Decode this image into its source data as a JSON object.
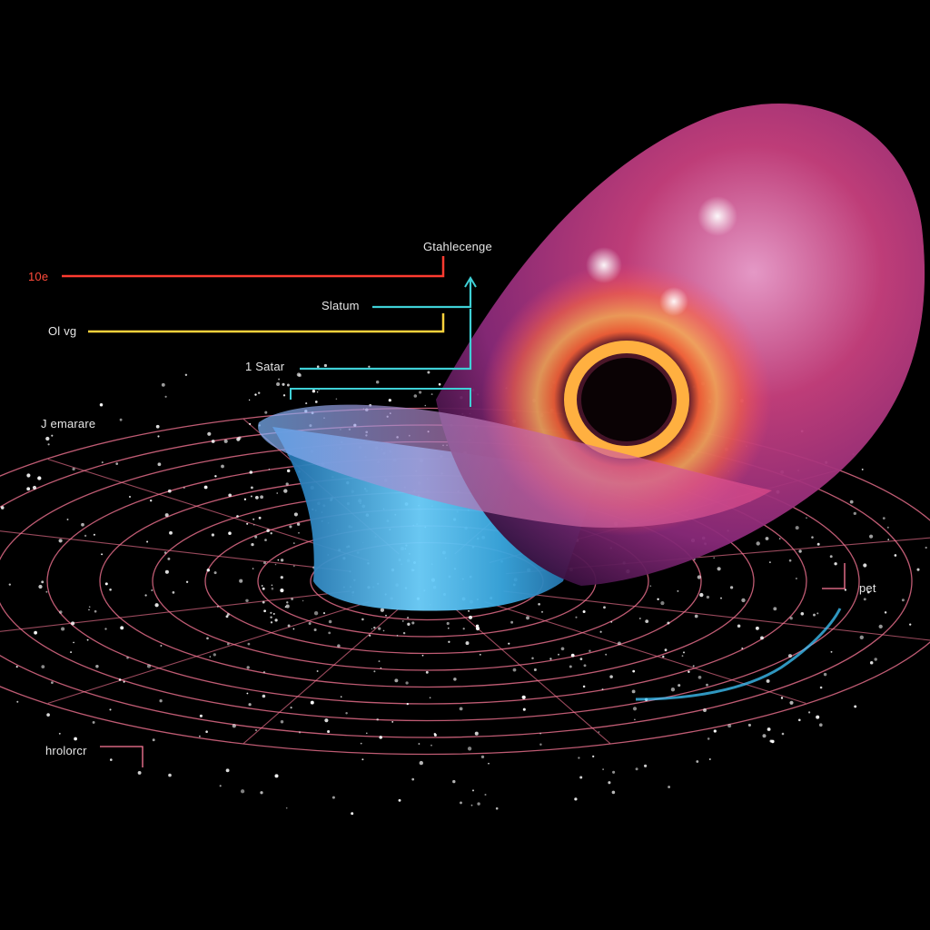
{
  "labels": {
    "red_left": "10e",
    "yellow_left": "Ol vg",
    "teal_left": "1 Satar",
    "top_center": "Gtahlecenge",
    "middle_center": "Slatum",
    "left_middle": "J emarare",
    "right_edge": "pet",
    "bottom_left": "hrolorcr"
  },
  "colors": {
    "background": "#000000",
    "red_line": "#ff3b30",
    "yellow_line": "#ffd23c",
    "teal_line": "#3fd0d6",
    "grid_ring": "#ff7a9a",
    "funnel_blue": "#3aa8e0",
    "bubble_magenta": "#d23a7a",
    "accretion_orange": "#ff8a2a"
  }
}
